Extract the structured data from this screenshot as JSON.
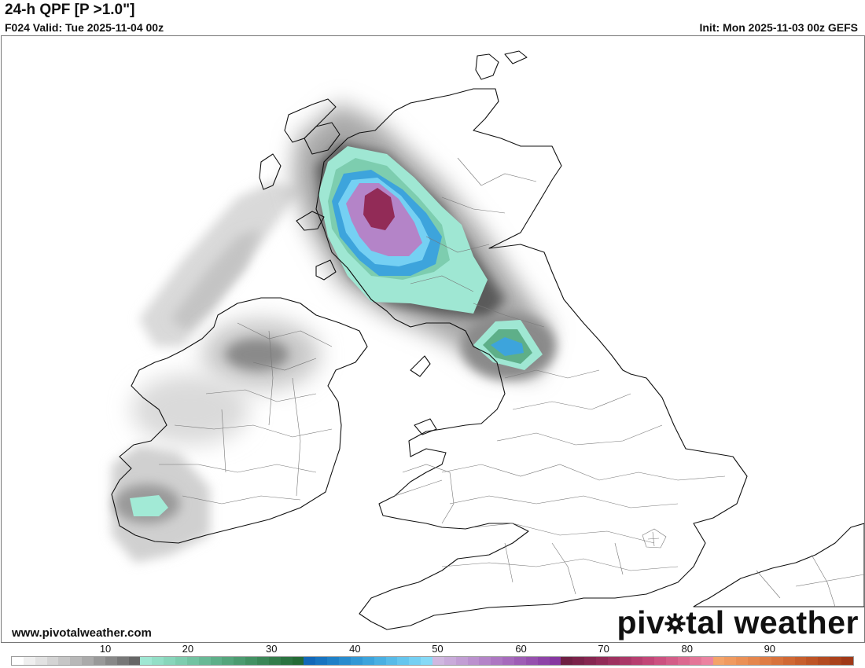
{
  "header": {
    "title": "24-h QPF [P >1.0\"]",
    "valid": "F024 Valid: Tue 2025-11-04 00z",
    "init": "Init: Mon 2025-11-03 00z GEFS"
  },
  "footer": {
    "website": "www.pivotalweather.com",
    "logo_before": "piv",
    "logo_after": "tal weather"
  },
  "colorbar": {
    "tick_labels": [
      "10",
      "20",
      "30",
      "40",
      "50",
      "60",
      "70",
      "80",
      "90"
    ],
    "colors": [
      "#ffffff",
      "#efefef",
      "#e2e2e2",
      "#d4d4d4",
      "#c6c6c6",
      "#b8b8b8",
      "#aaaaaa",
      "#999999",
      "#888888",
      "#777777",
      "#666666",
      "#9fe7d3",
      "#93dfc7",
      "#88d6bb",
      "#7dcdaf",
      "#72c3a2",
      "#68b996",
      "#5eaf89",
      "#55a57c",
      "#4c9b70",
      "#439163",
      "#3b8757",
      "#337d4b",
      "#2b7340",
      "#246a35",
      "#1268b8",
      "#1874c0",
      "#1f80c7",
      "#288cce",
      "#3298d5",
      "#3da4dc",
      "#4ab0e2",
      "#58bbe8",
      "#66c6ee",
      "#75d0f3",
      "#86daf7",
      "#d0b8e0",
      "#c9abda",
      "#c29ed4",
      "#bb91ce",
      "#b484c8",
      "#ad77c2",
      "#a66abc",
      "#9e5db5",
      "#9650ae",
      "#8e43a7",
      "#8637a0",
      "#6e1f42",
      "#7a2249",
      "#862650",
      "#922b57",
      "#9e315f",
      "#aa3767",
      "#b63e6f",
      "#c24677",
      "#cc5180",
      "#d45d88",
      "#dc6990",
      "#e47698",
      "#ec83a1",
      "#f4a36a",
      "#f09a60",
      "#eb9056",
      "#e5864d",
      "#df7c44",
      "#d8723c",
      "#d06834",
      "#c75e2d",
      "#be5426",
      "#b44a20",
      "#aa411b",
      "#a03817"
    ]
  },
  "map": {
    "region": "British Isles",
    "precip_colors": {
      "light_gray": "#d6d6d6",
      "mid_gray": "#b3b3b3",
      "dark_gray": "#7d7d7d",
      "teal": "#9fe7d3",
      "green": "#7dcdaf",
      "blue": "#3da4dc",
      "light_blue": "#75d0f3",
      "purple": "#b484c8",
      "maroon": "#922b57"
    }
  }
}
